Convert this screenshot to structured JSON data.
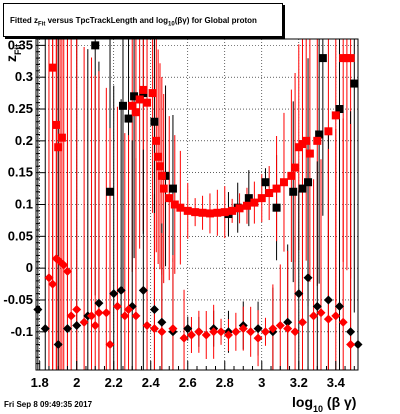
{
  "title": "Fitted  z_{Fit} versus TpcTrackLength and log_{10}(βγ) for Global proton",
  "footer": "Fri Sep  8 09:49:35 2017",
  "chart_data": {
    "type": "scatter",
    "title": "Fitted  z_{Fit} versus TpcTrackLength and log_{10}(βγ) for Global proton",
    "xlabel": "log_{10} (β γ)",
    "ylabel": "z_{Fit}",
    "xlim": [
      1.78,
      3.52
    ],
    "ylim": [
      -0.16,
      0.36
    ],
    "xticks": [
      1.8,
      2,
      2.2,
      2.4,
      2.6,
      2.8,
      3,
      3.2,
      3.4
    ],
    "xtick_labels": [
      "1.8",
      "2",
      "2.2",
      "2.4",
      "2.6",
      "2.8",
      "3",
      "3.2",
      "3.4"
    ],
    "yticks": [
      -0.1,
      -0.05,
      0,
      0.05,
      0.1,
      0.15,
      0.2,
      0.25,
      0.3,
      0.35
    ],
    "ytick_labels": [
      "-0.1",
      "-0.05",
      "0",
      "0.05",
      "0.1",
      "0.15",
      "0.2",
      "0.25",
      "0.3",
      "0.35"
    ],
    "grid": true,
    "series": [
      {
        "color": "#000000",
        "marker": "square",
        "points": [
          [
            2.1,
            0.35
          ],
          [
            2.18,
            0.12
          ],
          [
            2.25,
            0.255
          ],
          [
            2.28,
            0.235
          ],
          [
            2.31,
            0.27
          ],
          [
            2.36,
            0.275
          ],
          [
            2.42,
            0.23
          ],
          [
            2.48,
            0.145
          ],
          [
            2.52,
            0.125
          ],
          [
            2.82,
            0.085
          ],
          [
            2.87,
            0.095
          ],
          [
            2.93,
            0.11
          ],
          [
            3.02,
            0.135
          ],
          [
            3.08,
            0.095
          ],
          [
            3.17,
            0.12
          ],
          [
            3.22,
            0.125
          ],
          [
            3.25,
            0.135
          ],
          [
            3.31,
            0.21
          ],
          [
            3.33,
            0.33
          ],
          [
            3.42,
            0.25
          ],
          [
            3.5,
            0.29
          ]
        ]
      },
      {
        "color": "#ff0000",
        "marker": "square",
        "points": [
          [
            1.87,
            0.315
          ],
          [
            1.89,
            0.225
          ],
          [
            1.9,
            0.19
          ],
          [
            1.92,
            0.205
          ],
          [
            2.3,
            0.255
          ],
          [
            2.32,
            0.245
          ],
          [
            2.34,
            0.265
          ],
          [
            2.36,
            0.28
          ],
          [
            2.38,
            0.26
          ],
          [
            2.41,
            0.275
          ],
          [
            2.43,
            0.2
          ],
          [
            2.44,
            0.175
          ],
          [
            2.45,
            0.16
          ],
          [
            2.46,
            0.145
          ],
          [
            2.47,
            0.125
          ],
          [
            2.5,
            0.11
          ],
          [
            2.53,
            0.1
          ],
          [
            2.56,
            0.095
          ],
          [
            2.6,
            0.09
          ],
          [
            2.64,
            0.088
          ],
          [
            2.68,
            0.087
          ],
          [
            2.72,
            0.086
          ],
          [
            2.76,
            0.087
          ],
          [
            2.8,
            0.088
          ],
          [
            2.84,
            0.09
          ],
          [
            2.88,
            0.094
          ],
          [
            2.92,
            0.098
          ],
          [
            2.96,
            0.103
          ],
          [
            3.0,
            0.11
          ],
          [
            3.04,
            0.118
          ],
          [
            3.08,
            0.125
          ],
          [
            3.12,
            0.135
          ],
          [
            3.16,
            0.145
          ],
          [
            3.18,
            0.158
          ],
          [
            3.2,
            0.19
          ],
          [
            3.22,
            0.195
          ],
          [
            3.24,
            0.2
          ],
          [
            3.26,
            0.18
          ],
          [
            3.3,
            0.2
          ],
          [
            3.36,
            0.215
          ],
          [
            3.4,
            0.24
          ],
          [
            3.44,
            0.33
          ],
          [
            3.46,
            0.33
          ],
          [
            3.48,
            0.33
          ]
        ]
      },
      {
        "color": "#000000",
        "marker": "diamond",
        "points": [
          [
            1.79,
            -0.065
          ],
          [
            1.83,
            -0.095
          ],
          [
            1.9,
            -0.12
          ],
          [
            1.95,
            -0.095
          ],
          [
            2.0,
            -0.09
          ],
          [
            2.06,
            -0.075
          ],
          [
            2.12,
            -0.055
          ],
          [
            2.2,
            -0.04
          ],
          [
            2.24,
            -0.035
          ],
          [
            2.3,
            -0.06
          ],
          [
            2.36,
            -0.035
          ],
          [
            2.42,
            -0.065
          ],
          [
            2.46,
            -0.085
          ],
          [
            2.52,
            -0.1
          ],
          [
            2.6,
            -0.095
          ],
          [
            2.66,
            -0.1
          ],
          [
            2.74,
            -0.095
          ],
          [
            2.82,
            -0.1
          ],
          [
            2.9,
            -0.09
          ],
          [
            2.98,
            -0.095
          ],
          [
            3.06,
            -0.1
          ],
          [
            3.14,
            -0.085
          ],
          [
            3.2,
            -0.04
          ],
          [
            3.25,
            -0.015
          ],
          [
            3.3,
            -0.06
          ],
          [
            3.36,
            -0.05
          ],
          [
            3.42,
            -0.06
          ],
          [
            3.48,
            -0.1
          ],
          [
            3.52,
            -0.12
          ]
        ]
      },
      {
        "color": "#ff0000",
        "marker": "diamond",
        "points": [
          [
            1.85,
            -0.015
          ],
          [
            1.87,
            -0.025
          ],
          [
            1.89,
            0.015
          ],
          [
            1.91,
            0.01
          ],
          [
            1.93,
            0.005
          ],
          [
            1.95,
            -0.005
          ],
          [
            1.97,
            -0.075
          ],
          [
            2.0,
            -0.065
          ],
          [
            2.04,
            -0.085
          ],
          [
            2.08,
            -0.075
          ],
          [
            2.1,
            -0.09
          ],
          [
            2.12,
            -0.07
          ],
          [
            2.16,
            -0.07
          ],
          [
            2.18,
            -0.12
          ],
          [
            2.22,
            -0.06
          ],
          [
            2.26,
            -0.075
          ],
          [
            2.28,
            -0.065
          ],
          [
            2.32,
            -0.075
          ],
          [
            2.38,
            -0.09
          ],
          [
            2.42,
            -0.095
          ],
          [
            2.46,
            -0.1
          ],
          [
            2.52,
            -0.095
          ],
          [
            2.58,
            -0.11
          ],
          [
            2.62,
            -0.105
          ],
          [
            2.66,
            -0.1
          ],
          [
            2.7,
            -0.105
          ],
          [
            2.74,
            -0.1
          ],
          [
            2.78,
            -0.1
          ],
          [
            2.82,
            -0.105
          ],
          [
            2.86,
            -0.1
          ],
          [
            2.9,
            -0.095
          ],
          [
            2.94,
            -0.1
          ],
          [
            2.98,
            -0.11
          ],
          [
            3.02,
            -0.1
          ],
          [
            3.06,
            -0.095
          ],
          [
            3.1,
            -0.09
          ],
          [
            3.14,
            -0.095
          ],
          [
            3.18,
            -0.1
          ],
          [
            3.22,
            -0.085
          ],
          [
            3.28,
            -0.075
          ],
          [
            3.32,
            -0.07
          ],
          [
            3.36,
            -0.08
          ],
          [
            3.4,
            -0.075
          ],
          [
            3.44,
            -0.085
          ],
          [
            3.48,
            -0.12
          ]
        ]
      }
    ]
  }
}
